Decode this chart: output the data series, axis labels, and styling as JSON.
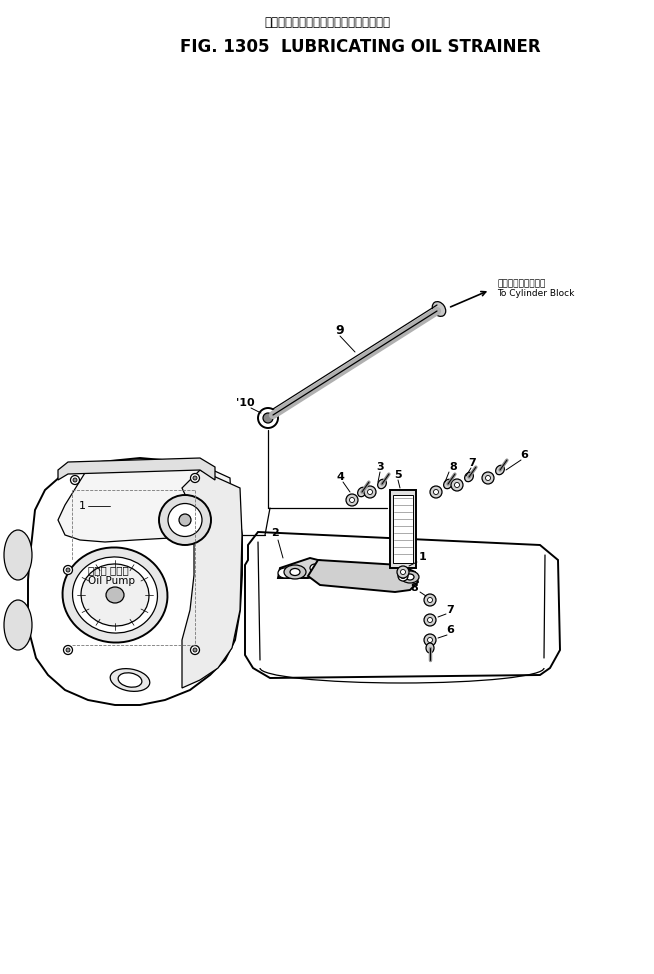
{
  "title_jp": "ルーブリケーティングオイルストレーナ",
  "title_en": "FIG. 1305  LUBRICATING OIL STRAINER",
  "bg_color": "#ffffff",
  "lc": "#000000",
  "annotation_jp": "シリンダブロックへ",
  "annotation_en": "To Cylinder Block",
  "oil_pump_jp": "オイル ポンプ",
  "oil_pump_en": "Oil Pump",
  "figsize": [
    6.54,
    9.74
  ],
  "dpi": 100
}
